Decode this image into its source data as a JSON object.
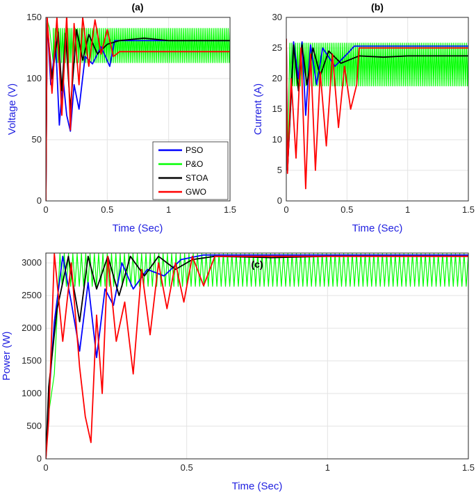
{
  "chart_data": [
    {
      "id": "a",
      "type": "line",
      "title": "(a)",
      "xlabel": "Time (Sec)",
      "ylabel": "Voltage (V)",
      "xlim": [
        0,
        1.5
      ],
      "ylim": [
        0,
        150
      ],
      "xticks": [
        0,
        0.5,
        1,
        1.5
      ],
      "xtick_labels": [
        "0",
        "0.5",
        "1",
        "1.5"
      ],
      "yticks": [
        0,
        50,
        100,
        150
      ],
      "ytick_labels": [
        "0",
        "50",
        "100",
        "150"
      ],
      "grid": true,
      "legend": {
        "position": "bottom-right",
        "entries": [
          {
            "name": "PSO",
            "color": "#0000ff"
          },
          {
            "name": "P&O",
            "color": "#00ff00"
          },
          {
            "name": "STOA",
            "color": "#000000"
          },
          {
            "name": "GWO",
            "color": "#ff0000"
          }
        ]
      },
      "series": [
        {
          "name": "P&O",
          "color": "#00ff00",
          "steady_band": [
            113,
            141
          ],
          "start": 0.03,
          "x": [
            0,
            0.01,
            0.03,
            0.06
          ],
          "y": [
            0,
            148,
            141,
            113
          ]
        },
        {
          "name": "PSO",
          "color": "#0000ff",
          "settle_time": 0.56,
          "settle_value": 131,
          "x": [
            0,
            0.01,
            0.04,
            0.08,
            0.11,
            0.14,
            0.17,
            0.2,
            0.23,
            0.27,
            0.32,
            0.38,
            0.45,
            0.52,
            0.56
          ],
          "y": [
            0,
            148,
            95,
            130,
            62,
            100,
            70,
            57,
            95,
            75,
            118,
            112,
            126,
            110,
            131
          ]
        },
        {
          "name": "STOA",
          "color": "#000000",
          "settle_time": 0.6,
          "settle_value": 131,
          "x": [
            0,
            0.01,
            0.05,
            0.1,
            0.13,
            0.16,
            0.2,
            0.25,
            0.3,
            0.35,
            0.42,
            0.5,
            0.6,
            0.8,
            1.0
          ],
          "y": [
            0,
            145,
            100,
            138,
            90,
            137,
            75,
            140,
            115,
            136,
            120,
            128,
            131,
            133,
            131
          ]
        },
        {
          "name": "GWO",
          "color": "#ff0000",
          "settle_time": 0.6,
          "settle_value": 122,
          "x": [
            0,
            0.01,
            0.05,
            0.09,
            0.13,
            0.17,
            0.2,
            0.23,
            0.27,
            0.3,
            0.35,
            0.4,
            0.45,
            0.5,
            0.55,
            0.6
          ],
          "y": [
            0,
            151,
            88,
            150,
            70,
            152,
            58,
            145,
            95,
            150,
            110,
            148,
            120,
            140,
            118,
            122
          ]
        }
      ]
    },
    {
      "id": "b",
      "type": "line",
      "title": "(b)",
      "xlabel": "Time (Sec)",
      "ylabel": "Current (A)",
      "xlim": [
        0,
        1.5
      ],
      "ylim": [
        0,
        30
      ],
      "xticks": [
        0,
        0.5,
        1,
        1.5
      ],
      "xtick_labels": [
        "0",
        "0.5",
        "1",
        "1.5"
      ],
      "yticks": [
        0,
        5,
        10,
        15,
        20,
        25,
        30
      ],
      "ytick_labels": [
        "0",
        "5",
        "10",
        "15",
        "20",
        "25",
        "30"
      ],
      "grid": true,
      "series": [
        {
          "name": "P&O",
          "color": "#00ff00",
          "steady_band": [
            18.8,
            25.8
          ],
          "start": 0.03,
          "x": [
            0,
            0.01,
            0.03
          ],
          "y": [
            26.5,
            6,
            25.8
          ]
        },
        {
          "name": "PSO",
          "color": "#0000ff",
          "settle_time": 0.56,
          "settle_value": 25.3,
          "x": [
            0,
            0.01,
            0.06,
            0.1,
            0.13,
            0.16,
            0.2,
            0.25,
            0.3,
            0.4,
            0.5,
            0.56
          ],
          "y": [
            26.5,
            5,
            26,
            20,
            26,
            14,
            25.5,
            19,
            25,
            22,
            24,
            25.3
          ]
        },
        {
          "name": "STOA",
          "color": "#000000",
          "settle_time": 0.6,
          "settle_value": 23.7,
          "x": [
            0,
            0.01,
            0.06,
            0.1,
            0.13,
            0.17,
            0.22,
            0.28,
            0.35,
            0.45,
            0.6,
            0.8,
            1.0
          ],
          "y": [
            26.5,
            5,
            25.5,
            18,
            25.5,
            19,
            25,
            20.5,
            24.5,
            22.5,
            23.7,
            23.5,
            23.7
          ]
        },
        {
          "name": "GWO",
          "color": "#ff0000",
          "settle_time": 0.6,
          "settle_value": 25,
          "x": [
            0,
            0.01,
            0.04,
            0.08,
            0.12,
            0.16,
            0.2,
            0.24,
            0.28,
            0.33,
            0.38,
            0.43,
            0.48,
            0.53,
            0.58,
            0.6
          ],
          "y": [
            26.5,
            4.5,
            20,
            7,
            25,
            2,
            24,
            5,
            21,
            9,
            24,
            12,
            22,
            15,
            19,
            25
          ]
        }
      ]
    },
    {
      "id": "c",
      "type": "line",
      "title": "(c)",
      "xlabel": "Time (Sec)",
      "ylabel": "Power (W)",
      "xlim": [
        0,
        1.5
      ],
      "ylim": [
        0,
        3150
      ],
      "xticks": [
        0,
        0.5,
        1,
        1.5
      ],
      "xtick_labels": [
        "0",
        "0.5",
        "1",
        "1.5"
      ],
      "yticks": [
        0,
        500,
        1000,
        1500,
        2000,
        2500,
        3000
      ],
      "ytick_labels": [
        "0",
        "500",
        "1000",
        "1500",
        "2000",
        "2500",
        "3000"
      ],
      "grid": true,
      "series": [
        {
          "name": "P&O",
          "color": "#00ff00",
          "steady_band": [
            2640,
            3140
          ],
          "start": 0.03,
          "x": [
            0,
            0.01,
            0.03,
            0.05
          ],
          "y": [
            0,
            700,
            1300,
            3140
          ]
        },
        {
          "name": "PSO",
          "color": "#0000ff",
          "settle_time": 0.56,
          "settle_value": 3120,
          "x": [
            0,
            0.01,
            0.03,
            0.06,
            0.09,
            0.12,
            0.15,
            0.18,
            0.21,
            0.24,
            0.27,
            0.31,
            0.36,
            0.42,
            0.48,
            0.56
          ],
          "y": [
            0,
            900,
            2100,
            3100,
            2400,
            1650,
            2700,
            1550,
            2600,
            2350,
            3000,
            2600,
            2900,
            2800,
            3050,
            3120
          ]
        },
        {
          "name": "STOA",
          "color": "#000000",
          "settle_time": 0.6,
          "settle_value": 3100,
          "x": [
            0,
            0.01,
            0.04,
            0.08,
            0.12,
            0.15,
            0.18,
            0.22,
            0.26,
            0.3,
            0.35,
            0.4,
            0.46,
            0.52,
            0.6,
            0.8,
            1.0
          ],
          "y": [
            0,
            1100,
            2300,
            3100,
            2100,
            3100,
            2600,
            3100,
            2500,
            3100,
            2800,
            3100,
            2900,
            3050,
            3100,
            3080,
            3100
          ]
        },
        {
          "name": "GWO",
          "color": "#ff0000",
          "settle_time": 0.6,
          "settle_value": 3100,
          "x": [
            0,
            0.01,
            0.03,
            0.06,
            0.09,
            0.12,
            0.14,
            0.16,
            0.18,
            0.2,
            0.22,
            0.25,
            0.28,
            0.31,
            0.34,
            0.37,
            0.4,
            0.43,
            0.46,
            0.49,
            0.52,
            0.56,
            0.6
          ],
          "y": [
            0,
            600,
            3140,
            1800,
            3000,
            1400,
            650,
            250,
            2200,
            1000,
            3100,
            1800,
            2400,
            1300,
            2900,
            1900,
            3000,
            2300,
            3000,
            2400,
            3100,
            2650,
            3100
          ]
        }
      ]
    }
  ]
}
